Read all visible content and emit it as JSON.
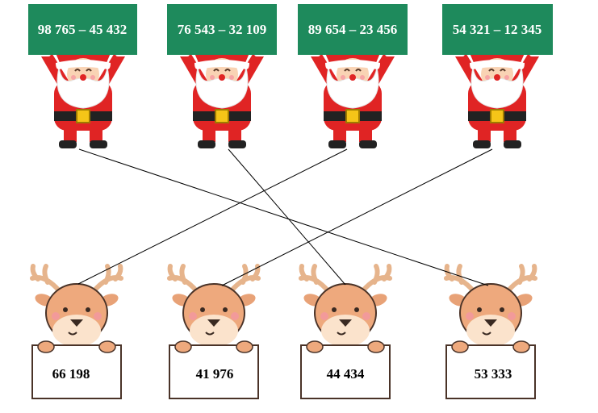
{
  "santas": [
    {
      "expression": "98 765 – 45 432"
    },
    {
      "expression": "76 543 – 32 109"
    },
    {
      "expression": "89 654 – 23 456"
    },
    {
      "expression": "54 321 – 12 345"
    }
  ],
  "reindeer": [
    {
      "number": "66 198"
    },
    {
      "number": "41 976"
    },
    {
      "number": "44 434"
    },
    {
      "number": "53 333"
    }
  ]
}
